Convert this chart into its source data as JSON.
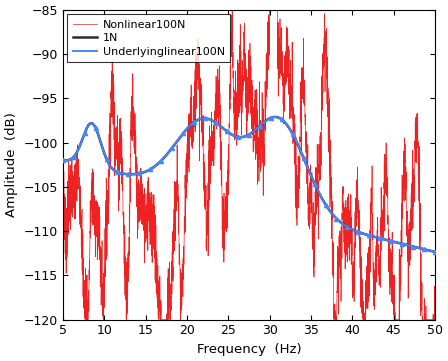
{
  "title": "",
  "xlabel": "Frequency  (Hz)",
  "ylabel": "Amplitude  (dB)",
  "xlim": [
    5,
    50
  ],
  "ylim": [
    -120,
    -85
  ],
  "yticks": [
    -120,
    -115,
    -110,
    -105,
    -100,
    -95,
    -90,
    -85
  ],
  "xticks": [
    5,
    10,
    15,
    20,
    25,
    30,
    35,
    40,
    45,
    50
  ],
  "legend_labels": [
    "1N",
    "Underlyinglinear100N",
    "Nonlinear100N"
  ],
  "line1_color": "#2d2d2d",
  "line2_color": "#4488FF",
  "line3_color": "#EE2222",
  "background_color": "#ffffff",
  "seed": 7
}
